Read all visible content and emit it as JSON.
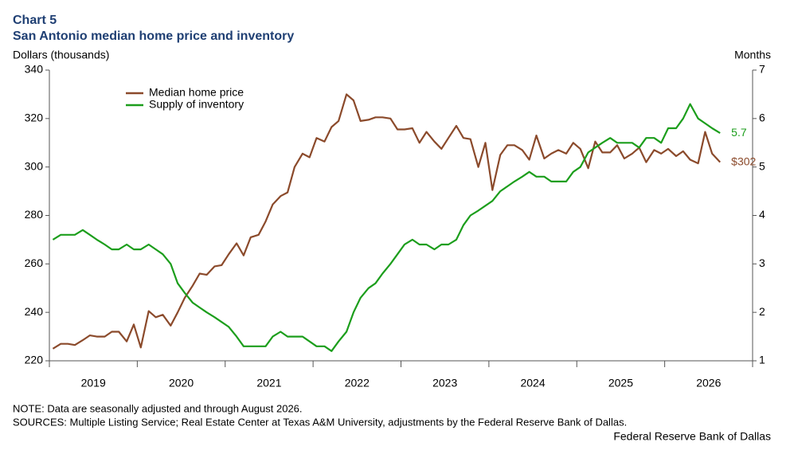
{
  "chart_data": {
    "type": "line",
    "title": "Chart 5",
    "subtitle": "San Antonio median home price and inventory",
    "ylabel": "Dollars (thousands)",
    "y2label": "Months",
    "note": "NOTE: Data are seasonally adjusted and through August 2026.",
    "sources": "SOURCES: Multiple Listing Service; Real Estate Center at Texas A&M University, adjustments by the Federal Reserve Bank of Dallas.",
    "credit": "Federal Reserve Bank of Dallas",
    "legend": "upper left",
    "xlim": [
      2019,
      2027
    ],
    "xticks": [
      {
        "value": 2019.5,
        "label": "2019"
      },
      {
        "value": 2020.5,
        "label": "2020"
      },
      {
        "value": 2021.5,
        "label": "2021"
      },
      {
        "value": 2022.5,
        "label": "2022"
      },
      {
        "value": 2023.5,
        "label": "2023"
      },
      {
        "value": 2024.5,
        "label": "2024"
      },
      {
        "value": 2025.5,
        "label": "2025"
      },
      {
        "value": 2026.5,
        "label": "2026"
      }
    ],
    "ylim": [
      220,
      340
    ],
    "yticks": [
      220,
      240,
      260,
      280,
      300,
      320,
      340
    ],
    "y2lim": [
      1,
      7
    ],
    "y2ticks": [
      1,
      2,
      3,
      4,
      5,
      6,
      7
    ],
    "x": [
      2019.04,
      2019.13,
      2019.21,
      2019.29,
      2019.38,
      2019.46,
      2019.54,
      2019.63,
      2019.71,
      2019.79,
      2019.88,
      2019.96,
      2020.04,
      2020.13,
      2020.21,
      2020.29,
      2020.38,
      2020.46,
      2020.54,
      2020.63,
      2020.71,
      2020.79,
      2020.88,
      2020.96,
      2021.04,
      2021.13,
      2021.21,
      2021.29,
      2021.38,
      2021.46,
      2021.54,
      2021.63,
      2021.71,
      2021.79,
      2021.88,
      2021.96,
      2022.04,
      2022.13,
      2022.21,
      2022.29,
      2022.38,
      2022.46,
      2022.54,
      2022.63,
      2022.71,
      2022.79,
      2022.88,
      2022.96,
      2023.04,
      2023.13,
      2023.21,
      2023.29,
      2023.38,
      2023.46,
      2023.54,
      2023.63,
      2023.71,
      2023.79,
      2023.88,
      2023.96,
      2024.04,
      2024.13,
      2024.21,
      2024.29,
      2024.38,
      2024.46,
      2024.54,
      2024.63,
      2024.71,
      2024.79,
      2024.88,
      2024.96,
      2025.04,
      2025.13,
      2025.21,
      2025.29,
      2025.38,
      2025.46,
      2025.54,
      2025.63,
      2025.71,
      2025.79,
      2025.88,
      2025.96,
      2026.04,
      2026.13,
      2026.21,
      2026.29,
      2026.38,
      2026.46,
      2026.54,
      2026.63
    ],
    "series": [
      {
        "name": "Median home price",
        "color": "#8b4a2b",
        "values": [
          225,
          227,
          227,
          226.5,
          228.5,
          230.5,
          230,
          230,
          232,
          232,
          228,
          235,
          225.5,
          240.5,
          238,
          239,
          234.5,
          240,
          246,
          251,
          256,
          255.5,
          259,
          259.5,
          264,
          268.5,
          263.5,
          271,
          272,
          277.5,
          284.5,
          288,
          289.5,
          300,
          305.5,
          304,
          312,
          310.5,
          316.5,
          319,
          330,
          327.5,
          319,
          319.5,
          320.5,
          320.5,
          320,
          315.5,
          315.5,
          316,
          310,
          314.5,
          310.5,
          307.5,
          312,
          317,
          312,
          311.5,
          300,
          310,
          290.5,
          305,
          309,
          309,
          307,
          303,
          313,
          303.5,
          305.5,
          307,
          305.5,
          310,
          307.5,
          299.5,
          310.5,
          306,
          306,
          309,
          303.5,
          305.5,
          308,
          302,
          307,
          305.5,
          307.5,
          304.5,
          306.5,
          303,
          301.5,
          314.5,
          305.5,
          302
        ],
        "value_labels": [
          null,
          null,
          null,
          null,
          null,
          null,
          null,
          null,
          null,
          null,
          null,
          null,
          null,
          null,
          null,
          null,
          null,
          null,
          null,
          null,
          null,
          null,
          null,
          null,
          null,
          null,
          null,
          null,
          null,
          null,
          null,
          null,
          null,
          null,
          null,
          null,
          null,
          null,
          null,
          null,
          null,
          null,
          null,
          null,
          null,
          null,
          null,
          null,
          null,
          null,
          null,
          null,
          null,
          null,
          null,
          null,
          null,
          null,
          null,
          null,
          null,
          null,
          null,
          null,
          null,
          null,
          null,
          null,
          null,
          null,
          null,
          null,
          null,
          null,
          null,
          null,
          null,
          null,
          null,
          null,
          null,
          null,
          null,
          null,
          null,
          null,
          null,
          null,
          null,
          null,
          null,
          "$302"
        ]
      },
      {
        "name": "Supply of inventory",
        "color": "#1c9e1c",
        "axis": "y2",
        "values": [
          3.5,
          3.6,
          3.6,
          3.6,
          3.7,
          3.6,
          3.5,
          3.4,
          3.3,
          3.3,
          3.4,
          3.3,
          3.3,
          3.4,
          3.3,
          3.2,
          3.0,
          2.6,
          2.4,
          2.2,
          2.1,
          2.0,
          1.9,
          1.8,
          1.7,
          1.5,
          1.3,
          1.3,
          1.3,
          1.3,
          1.5,
          1.6,
          1.5,
          1.5,
          1.5,
          1.4,
          1.3,
          1.3,
          1.2,
          1.4,
          1.6,
          2.0,
          2.3,
          2.5,
          2.6,
          2.8,
          3.0,
          3.2,
          3.4,
          3.5,
          3.4,
          3.4,
          3.3,
          3.4,
          3.4,
          3.5,
          3.8,
          4.0,
          4.1,
          4.2,
          4.3,
          4.5,
          4.6,
          4.7,
          4.8,
          4.9,
          4.8,
          4.8,
          4.7,
          4.7,
          4.7,
          4.9,
          5.0,
          5.3,
          5.4,
          5.5,
          5.6,
          5.5,
          5.5,
          5.5,
          5.4,
          5.6,
          5.6,
          5.5,
          5.8,
          5.8,
          6.0,
          6.3,
          6.0,
          5.9,
          5.8,
          5.7
        ],
        "value_labels": [
          null,
          null,
          null,
          null,
          null,
          null,
          null,
          null,
          null,
          null,
          null,
          null,
          null,
          null,
          null,
          null,
          null,
          null,
          null,
          null,
          null,
          null,
          null,
          null,
          null,
          null,
          null,
          null,
          null,
          null,
          null,
          null,
          null,
          null,
          null,
          null,
          null,
          null,
          null,
          null,
          null,
          null,
          null,
          null,
          null,
          null,
          null,
          null,
          null,
          null,
          null,
          null,
          null,
          null,
          null,
          null,
          null,
          null,
          null,
          null,
          null,
          null,
          null,
          null,
          null,
          null,
          null,
          null,
          null,
          null,
          null,
          null,
          null,
          null,
          null,
          null,
          null,
          null,
          null,
          null,
          null,
          null,
          null,
          null,
          null,
          null,
          null,
          null,
          null,
          null,
          null,
          "5.7"
        ]
      }
    ]
  }
}
